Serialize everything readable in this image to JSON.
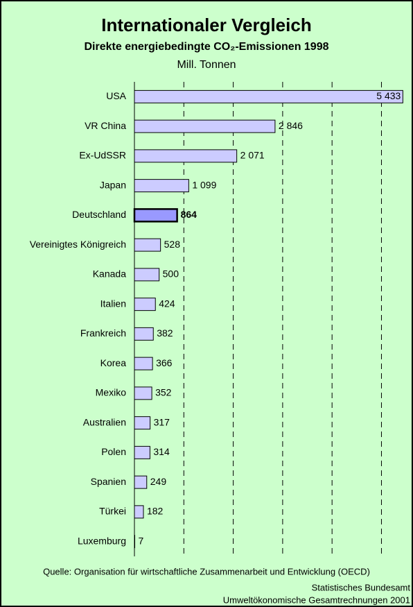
{
  "chart_data": {
    "type": "hbar",
    "title": "Internationaler Vergleich",
    "subtitle": "Direkte energiebedingte CO₂-Emissionen 1998",
    "unit": "Mill. Tonnen",
    "categories": [
      "USA",
      "VR China",
      "Ex-UdSSR",
      "Japan",
      "Deutschland",
      "Vereinigtes Königreich",
      "Kanada",
      "Italien",
      "Frankreich",
      "Korea",
      "Mexiko",
      "Australien",
      "Polen",
      "Spanien",
      "Türkei",
      "Luxemburg"
    ],
    "values": [
      5433,
      2846,
      2071,
      1099,
      864,
      528,
      500,
      424,
      382,
      366,
      352,
      317,
      314,
      249,
      182,
      7
    ],
    "value_labels": [
      "5 433",
      "2 846",
      "2 071",
      "1 099",
      "864",
      "528",
      "500",
      "424",
      "382",
      "366",
      "352",
      "317",
      "314",
      "249",
      "182",
      "7"
    ],
    "color": "#ccccff",
    "highlight": 4,
    "highlight_color": "#9999ff",
    "xlim": [
      0,
      5400
    ],
    "xgrid": [
      1000,
      2000,
      3000,
      4000,
      5000
    ],
    "source": "Quelle: Organisation für wirtschaftliche Zusammenarbeit und Entwicklung (OECD)",
    "footer": [
      "Statistisches Bundesamt",
      "Umweltökonomische Gesamtrechnungen 2001"
    ]
  }
}
